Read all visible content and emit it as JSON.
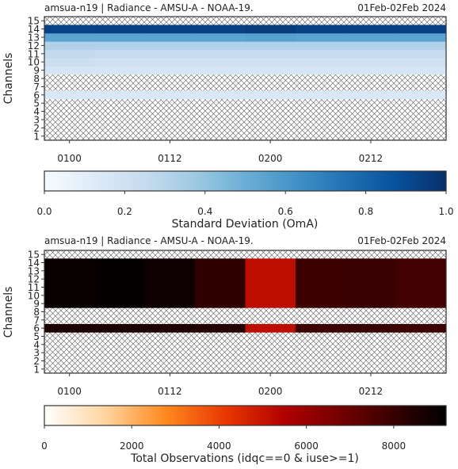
{
  "chart_data": [
    {
      "type": "heatmap",
      "title_left": "amsua-n19  |  Radiance - AMSU-A - NOAA-19.",
      "title_right": "01Feb-02Feb 2024",
      "ylabel": "Channels",
      "x_ticks": [
        "0100",
        "0112",
        "0200",
        "0212"
      ],
      "y_ticks": [
        "1",
        "2",
        "3",
        "4",
        "5",
        "6",
        "7",
        "8",
        "9",
        "10",
        "11",
        "12",
        "13",
        "14",
        "15"
      ],
      "n_times": 8,
      "missing_channels": [
        1,
        2,
        3,
        4,
        5,
        7,
        8,
        15
      ],
      "rows": [
        {
          "channel": 6,
          "values": [
            0.15,
            0.15,
            0.15,
            0.15,
            0.15,
            0.15,
            0.15,
            0.15
          ]
        },
        {
          "channel": 9,
          "values": [
            0.17,
            0.17,
            0.17,
            0.17,
            0.17,
            0.17,
            0.17,
            0.17
          ]
        },
        {
          "channel": 10,
          "values": [
            0.22,
            0.21,
            0.21,
            0.21,
            0.21,
            0.21,
            0.21,
            0.21
          ]
        },
        {
          "channel": 11,
          "values": [
            0.26,
            0.25,
            0.25,
            0.25,
            0.25,
            0.25,
            0.25,
            0.25
          ]
        },
        {
          "channel": 12,
          "values": [
            0.32,
            0.32,
            0.32,
            0.32,
            0.32,
            0.32,
            0.32,
            0.32
          ]
        },
        {
          "channel": 13,
          "values": [
            0.55,
            0.55,
            0.55,
            0.55,
            0.56,
            0.55,
            0.55,
            0.55
          ]
        },
        {
          "channel": 14,
          "values": [
            0.93,
            0.94,
            0.94,
            0.94,
            0.96,
            0.94,
            0.94,
            0.94
          ]
        }
      ],
      "colorbar": {
        "cmap": "Blues",
        "min": 0.0,
        "max": 1.0,
        "ticks": [
          "0.0",
          "0.2",
          "0.4",
          "0.6",
          "0.8",
          "1.0"
        ],
        "label": "Standard Deviation (OmA)"
      }
    },
    {
      "type": "heatmap",
      "title_left": "amsua-n19  |  Radiance - AMSU-A - NOAA-19.",
      "title_right": "01Feb-02Feb 2024",
      "ylabel": "Channels",
      "x_ticks": [
        "0100",
        "0112",
        "0200",
        "0212"
      ],
      "y_ticks": [
        "1",
        "2",
        "3",
        "4",
        "5",
        "6",
        "7",
        "8",
        "9",
        "10",
        "11",
        "12",
        "13",
        "14",
        "15"
      ],
      "n_times": 8,
      "missing_channels": [
        1,
        2,
        3,
        4,
        5,
        7,
        8,
        15
      ],
      "rows": [
        {
          "channel": 6,
          "values": [
            8600,
            8600,
            8550,
            8400,
            5200,
            7900,
            8000,
            7900
          ]
        },
        {
          "channel": 9,
          "values": [
            9000,
            9100,
            8900,
            8200,
            5200,
            7900,
            8000,
            7800
          ]
        },
        {
          "channel": 10,
          "values": [
            9000,
            9100,
            8900,
            8200,
            5200,
            7900,
            8000,
            7800
          ]
        },
        {
          "channel": 11,
          "values": [
            9000,
            9100,
            8900,
            8200,
            5200,
            7900,
            8000,
            7800
          ]
        },
        {
          "channel": 12,
          "values": [
            9000,
            9100,
            8900,
            8200,
            5200,
            7900,
            8000,
            7800
          ]
        },
        {
          "channel": 13,
          "values": [
            9000,
            9100,
            8900,
            8200,
            5200,
            7900,
            8000,
            7800
          ]
        },
        {
          "channel": 14,
          "values": [
            9000,
            9100,
            8900,
            8200,
            5200,
            7900,
            8000,
            7800
          ]
        }
      ],
      "colorbar": {
        "cmap": "gist_heat_r",
        "min": 0,
        "max": 9200,
        "ticks": [
          "0",
          "2000",
          "4000",
          "6000",
          "8000"
        ],
        "tick_values": [
          0,
          2000,
          4000,
          6000,
          8000
        ],
        "label": "Total Observations (idqc==0 & iuse>=1)"
      }
    }
  ]
}
